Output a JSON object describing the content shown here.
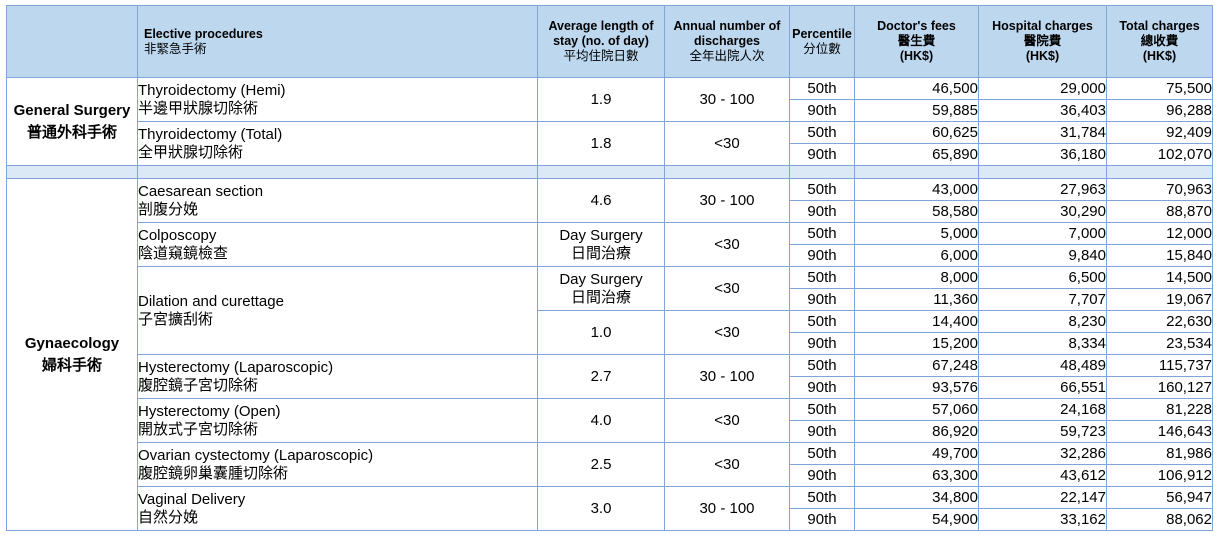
{
  "headers": {
    "procedure_en": "Elective procedures",
    "procedure_zh": "非緊急手術",
    "stay_en": "Average length of stay (no. of day)",
    "stay_zh": "平均住院日數",
    "discharges_en": "Annual number of discharges",
    "discharges_zh": "全年出院人次",
    "percentile_en": "Percentile",
    "percentile_zh": "分位數",
    "doctor_en": "Doctor's fees",
    "doctor_zh": "醫生費",
    "doctor_unit": "(HK$)",
    "hospital_en": "Hospital charges",
    "hospital_zh": "醫院費",
    "hospital_unit": "(HK$)",
    "total_en": "Total charges",
    "total_zh": "總收費",
    "total_unit": "(HK$)"
  },
  "sections": {
    "general": {
      "name_en": "General Surgery",
      "name_zh": "普通外科手術"
    },
    "gyn": {
      "name_en": "Gynaecology",
      "name_zh": "婦科手術"
    }
  },
  "procedures": [
    {
      "en": "Thyroidectomy (Hemi)",
      "zh": "半邊甲狀腺切除術",
      "stays": [
        {
          "stay": "1.9",
          "stay_zh": "",
          "discharges": "30 - 100",
          "rows": [
            {
              "p": "50th",
              "doctor": "46,500",
              "hospital": "29,000",
              "total": "75,500"
            },
            {
              "p": "90th",
              "doctor": "59,885",
              "hospital": "36,403",
              "total": "96,288"
            }
          ]
        }
      ]
    },
    {
      "en": "Thyroidectomy (Total)",
      "zh": "全甲狀腺切除術",
      "stays": [
        {
          "stay": "1.8",
          "stay_zh": "",
          "discharges": "<30",
          "rows": [
            {
              "p": "50th",
              "doctor": "60,625",
              "hospital": "31,784",
              "total": "92,409"
            },
            {
              "p": "90th",
              "doctor": "65,890",
              "hospital": "36,180",
              "total": "102,070"
            }
          ]
        }
      ]
    },
    {
      "en": "Caesarean section",
      "zh": "剖腹分娩",
      "stays": [
        {
          "stay": "4.6",
          "stay_zh": "",
          "discharges": "30 - 100",
          "rows": [
            {
              "p": "50th",
              "doctor": "43,000",
              "hospital": "27,963",
              "total": "70,963"
            },
            {
              "p": "90th",
              "doctor": "58,580",
              "hospital": "30,290",
              "total": "88,870"
            }
          ]
        }
      ]
    },
    {
      "en": "Colposcopy",
      "zh": "陰道窺鏡檢查",
      "stays": [
        {
          "stay": "Day Surgery",
          "stay_zh": "日間治療",
          "discharges": "<30",
          "rows": [
            {
              "p": "50th",
              "doctor": "5,000",
              "hospital": "7,000",
              "total": "12,000"
            },
            {
              "p": "90th",
              "doctor": "6,000",
              "hospital": "9,840",
              "total": "15,840"
            }
          ]
        }
      ]
    },
    {
      "en": "Dilation and curettage",
      "zh": "子宮擴刮術",
      "stays": [
        {
          "stay": "Day Surgery",
          "stay_zh": "日間治療",
          "discharges": "<30",
          "rows": [
            {
              "p": "50th",
              "doctor": "8,000",
              "hospital": "6,500",
              "total": "14,500"
            },
            {
              "p": "90th",
              "doctor": "11,360",
              "hospital": "7,707",
              "total": "19,067"
            }
          ]
        },
        {
          "stay": "1.0",
          "stay_zh": "",
          "discharges": "<30",
          "rows": [
            {
              "p": "50th",
              "doctor": "14,400",
              "hospital": "8,230",
              "total": "22,630"
            },
            {
              "p": "90th",
              "doctor": "15,200",
              "hospital": "8,334",
              "total": "23,534"
            }
          ]
        }
      ]
    },
    {
      "en": "Hysterectomy (Laparoscopic)",
      "zh": "腹腔鏡子宮切除術",
      "stays": [
        {
          "stay": "2.7",
          "stay_zh": "",
          "discharges": "30 - 100",
          "rows": [
            {
              "p": "50th",
              "doctor": "67,248",
              "hospital": "48,489",
              "total": "115,737"
            },
            {
              "p": "90th",
              "doctor": "93,576",
              "hospital": "66,551",
              "total": "160,127"
            }
          ]
        }
      ]
    },
    {
      "en": "Hysterectomy (Open)",
      "zh": "開放式子宮切除術",
      "stays": [
        {
          "stay": "4.0",
          "stay_zh": "",
          "discharges": "<30",
          "rows": [
            {
              "p": "50th",
              "doctor": "57,060",
              "hospital": "24,168",
              "total": "81,228"
            },
            {
              "p": "90th",
              "doctor": "86,920",
              "hospital": "59,723",
              "total": "146,643"
            }
          ]
        }
      ]
    },
    {
      "en": "Ovarian cystectomy (Laparoscopic)",
      "zh": "腹腔鏡卵巢囊腫切除術",
      "stays": [
        {
          "stay": "2.5",
          "stay_zh": "",
          "discharges": "<30",
          "rows": [
            {
              "p": "50th",
              "doctor": "49,700",
              "hospital": "32,286",
              "total": "81,986"
            },
            {
              "p": "90th",
              "doctor": "63,300",
              "hospital": "43,612",
              "total": "106,912"
            }
          ]
        }
      ]
    },
    {
      "en": "Vaginal Delivery",
      "zh": "自然分娩",
      "stays": [
        {
          "stay": "3.0",
          "stay_zh": "",
          "discharges": "30 - 100",
          "rows": [
            {
              "p": "50th",
              "doctor": "34,800",
              "hospital": "22,147",
              "total": "56,947"
            },
            {
              "p": "90th",
              "doctor": "54,900",
              "hospital": "33,162",
              "total": "88,062"
            }
          ]
        }
      ]
    }
  ]
}
